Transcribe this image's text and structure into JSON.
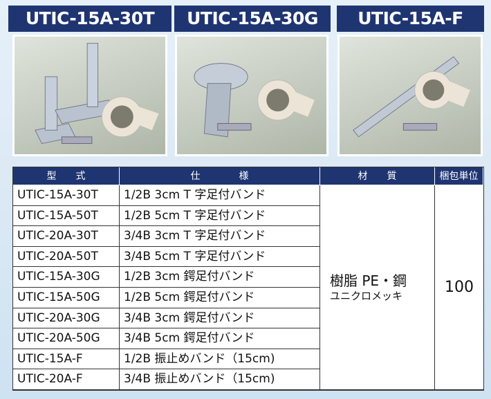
{
  "products": [
    {
      "name": "UTIC-15A-30T"
    },
    {
      "name": "UTIC-15A-30G"
    },
    {
      "name": "UTIC-15A-F"
    }
  ],
  "table": {
    "headers": [
      "型　　式",
      "仕　　　　様",
      "材　　質",
      "梱包単位"
    ],
    "rows": [
      [
        "UTIC-15A-30T",
        "1/2B 3cm T 字足付バンド"
      ],
      [
        "UTIC-15A-50T",
        "1/2B 5cm T 字足付バンド"
      ],
      [
        "UTIC-20A-30T",
        "3/4B 3cm T 字足付バンド"
      ],
      [
        "UTIC-20A-50T",
        "3/4B 5cm T 字足付バンド"
      ],
      [
        "UTIC-15A-30G",
        "1/2B 3cm 鍔足付バンド"
      ],
      [
        "UTIC-15A-50G",
        "1/2B 5cm 鍔足付バンド"
      ],
      [
        "UTIC-20A-30G",
        "3/4B 3cm 鍔足付バンド"
      ],
      [
        "UTIC-20A-50G",
        "3/4B 5cm 鍔足付バンド"
      ],
      [
        "UTIC-15A-F",
        " 1/2B 振止めバンド（15cm)"
      ],
      [
        "UTIC-20A-F",
        "3/4B 振止めバンド（15cm)"
      ]
    ],
    "material": [
      "樹脂 PE・鋼",
      "ユニクロメッキ"
    ],
    "packing": "100"
  }
}
